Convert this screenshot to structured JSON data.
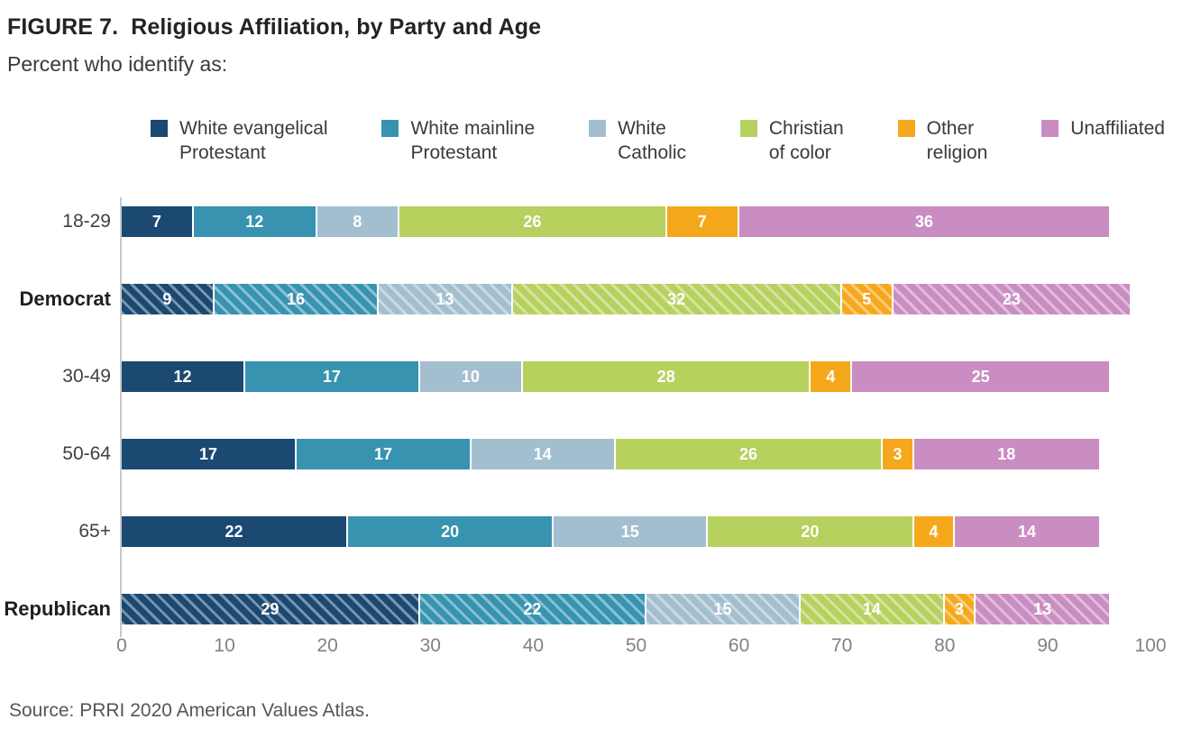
{
  "title": "FIGURE 7.  Religious Affiliation, by Party and Age",
  "subtitle": "Percent who identify as:",
  "source": "Source: PRRI 2020 American Values Atlas.",
  "chart_data": {
    "type": "bar",
    "orientation": "horizontal",
    "stacked": true,
    "grid": false,
    "legend_position": "top",
    "xlabel": "",
    "ylabel": "",
    "xlim": [
      0,
      100
    ],
    "x_ticks": [
      0,
      10,
      20,
      30,
      40,
      50,
      60,
      70,
      80,
      90,
      100
    ],
    "categories": [
      {
        "label": "18-29",
        "hatched": false,
        "bold": false
      },
      {
        "label": "Democrat",
        "hatched": true,
        "bold": true
      },
      {
        "label": "30-49",
        "hatched": false,
        "bold": false
      },
      {
        "label": "50-64",
        "hatched": false,
        "bold": false
      },
      {
        "label": "65+",
        "hatched": false,
        "bold": false
      },
      {
        "label": "Republican",
        "hatched": true,
        "bold": true
      }
    ],
    "series": [
      {
        "name": "White evangelical Protestant",
        "legend_lines": [
          "White evangelical",
          "Protestant"
        ],
        "color": "#1b4971",
        "values": [
          7,
          9,
          12,
          17,
          22,
          29
        ]
      },
      {
        "name": "White mainline Protestant",
        "legend_lines": [
          "White mainline",
          "Protestant"
        ],
        "color": "#3793b0",
        "values": [
          12,
          16,
          17,
          17,
          20,
          22
        ]
      },
      {
        "name": "White Catholic",
        "legend_lines": [
          "White",
          "Catholic"
        ],
        "color": "#a3bfcf",
        "values": [
          8,
          13,
          10,
          14,
          15,
          15
        ]
      },
      {
        "name": "Christian of color",
        "legend_lines": [
          "Christian",
          "of color"
        ],
        "color": "#b7d15f",
        "values": [
          26,
          32,
          28,
          26,
          20,
          14
        ]
      },
      {
        "name": "Other religion",
        "legend_lines": [
          "Other",
          "religion"
        ],
        "color": "#f6a81c",
        "values": [
          7,
          5,
          4,
          3,
          4,
          3
        ]
      },
      {
        "name": "Unaffiliated",
        "legend_lines": [
          "Unaffiliated"
        ],
        "color": "#c98dc1",
        "values": [
          36,
          23,
          25,
          18,
          14,
          13
        ]
      }
    ]
  }
}
